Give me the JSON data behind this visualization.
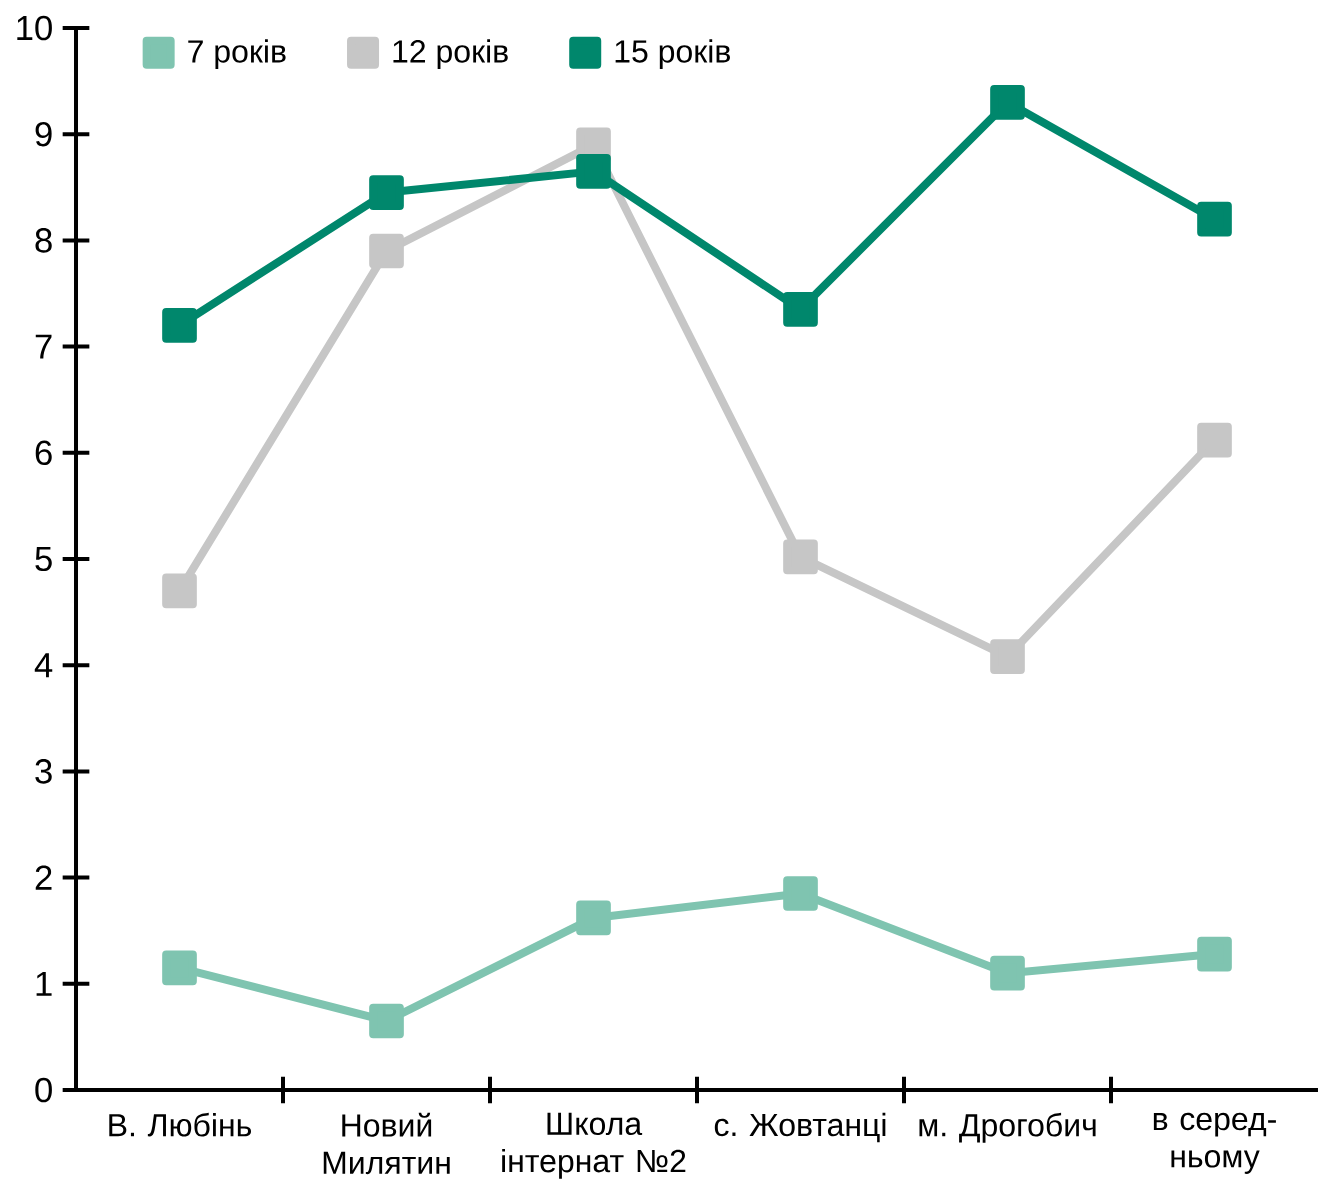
{
  "chart_data": {
    "type": "line",
    "categories": [
      "В. Любінь",
      "Новий Милятин",
      "Школа інтернат №2",
      "с. Жовтанці",
      "м. Дрогобич",
      "в серед-ньому"
    ],
    "series": [
      {
        "name": "7 років",
        "color": "#7fc4b0",
        "values": [
          1.15,
          0.65,
          1.62,
          1.85,
          1.1,
          1.28
        ]
      },
      {
        "name": "12 років",
        "color": "#c6c6c6",
        "values": [
          4.7,
          7.9,
          8.9,
          5.02,
          4.08,
          6.12
        ]
      },
      {
        "name": "15 років",
        "color": "#00876c",
        "values": [
          7.2,
          8.45,
          8.65,
          7.35,
          9.3,
          8.2
        ]
      }
    ],
    "ylim": [
      0,
      10
    ],
    "yticks": [
      0,
      1,
      2,
      3,
      4,
      5,
      6,
      7,
      8,
      9,
      10
    ],
    "legend": "top left",
    "marker": "square",
    "line_style": "solid"
  }
}
